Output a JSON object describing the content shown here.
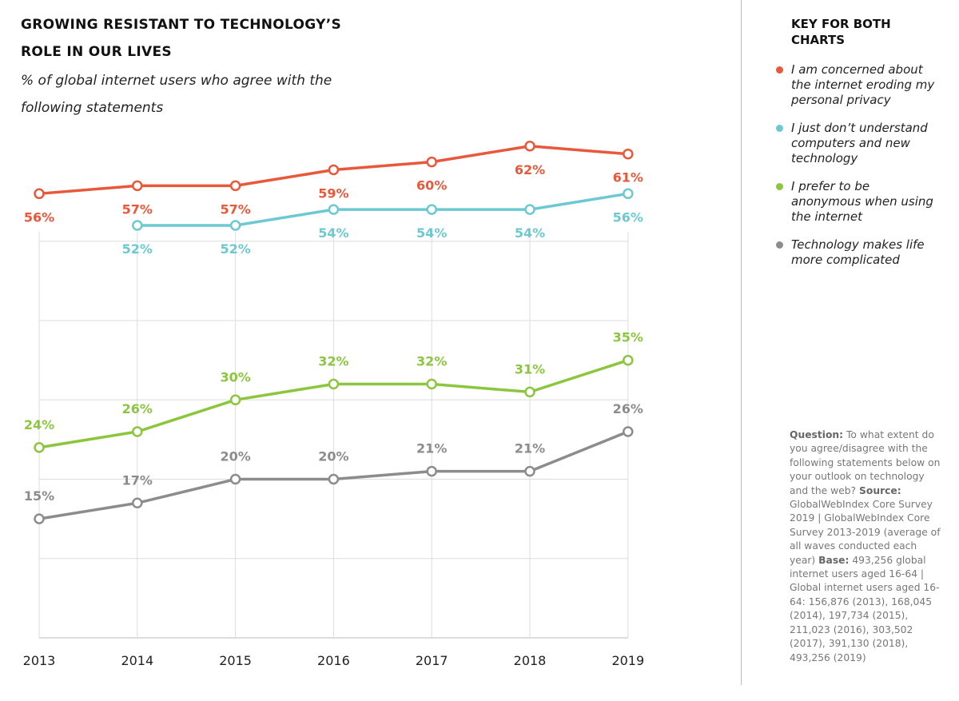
{
  "chart_data": {
    "type": "line",
    "title": "GROWING RESISTANT TO TECHNOLOGY’S ROLE IN OUR LIVES",
    "subtitle": "% of global internet users who agree with the following statements",
    "legend_title": "KEY FOR BOTH CHARTS",
    "categories": [
      "2013",
      "2014",
      "2015",
      "2016",
      "2017",
      "2018",
      "2019"
    ],
    "series": [
      {
        "name": "I am concerned about the internet eroding my personal privacy",
        "color": "#e8583a",
        "values": [
          56,
          57,
          57,
          59,
          60,
          62,
          61
        ],
        "value_labels": [
          "56%",
          "57%",
          "57%",
          "59%",
          "60%",
          "62%",
          "61%"
        ]
      },
      {
        "name": "I just don’t understand computers and new technology",
        "color": "#6cc9d1",
        "values": [
          null,
          52,
          52,
          54,
          54,
          54,
          56
        ],
        "value_labels": [
          null,
          "52%",
          "52%",
          "54%",
          "54%",
          "54%",
          "56%"
        ]
      },
      {
        "name": "I prefer to be anonymous when using the internet",
        "color": "#8cc63f",
        "values": [
          24,
          26,
          30,
          32,
          32,
          31,
          35
        ],
        "value_labels": [
          "24%",
          "26%",
          "30%",
          "32%",
          "32%",
          "31%",
          "35%"
        ]
      },
      {
        "name": "Technology makes life more complicated",
        "color": "#8c8c8c",
        "values": [
          15,
          17,
          20,
          20,
          21,
          21,
          26
        ],
        "value_labels": [
          "15%",
          "17%",
          "20%",
          "20%",
          "21%",
          "21%",
          "26%"
        ]
      }
    ],
    "ylim": [
      0,
      65
    ],
    "yticks": [
      0,
      10,
      20,
      30,
      40,
      50
    ],
    "grid": true,
    "note": {
      "question_label": "Question:",
      "question": "To what extent do you agree/disagree with the following statements below on your outlook on technology and the web?",
      "source_label": "Source:",
      "source": "GlobalWebIndex Core Survey 2019 | GlobalWebIndex Core Survey 2013-2019 (average of all waves conducted each year)",
      "base_label": "Base:",
      "base": "493,256 global internet users aged 16-64 | Global internet users aged 16-64: 156,876 (2013), 168,045 (2014), 197,734 (2015), 211,023 (2016), 303,502 (2017), 391,130 (2018), 493,256 (2019)"
    }
  }
}
